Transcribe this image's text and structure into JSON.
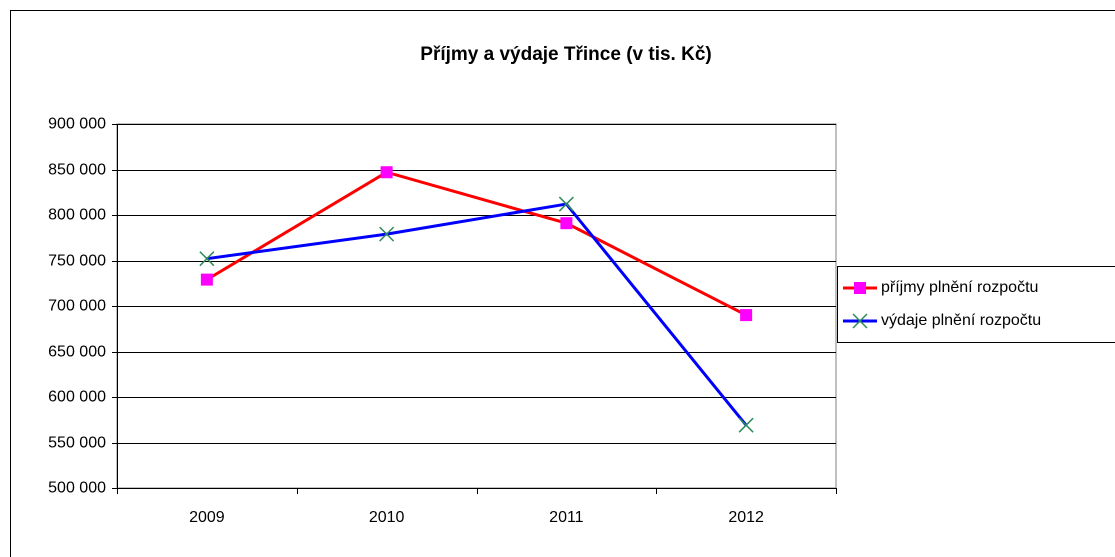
{
  "chart_data": {
    "type": "line",
    "title": "Příjmy a výdaje Třince (v tis. Kč)",
    "categories": [
      "2009",
      "2010",
      "2011",
      "2012"
    ],
    "series": [
      {
        "name": "příjmy plnění rozpočtu",
        "color": "#ff0000",
        "marker_color": "#ff00ff",
        "marker": "square",
        "values": [
          729000,
          847000,
          791000,
          690000
        ]
      },
      {
        "name": "výdaje plnění rozpočtu",
        "color": "#0000ff",
        "marker_color": "#2e8b57",
        "marker": "x",
        "values": [
          752000,
          779000,
          812000,
          569000
        ]
      }
    ],
    "ylim": [
      500000,
      900000
    ],
    "yticks": [
      {
        "value": 500000,
        "label": "500 000"
      },
      {
        "value": 550000,
        "label": "550 000"
      },
      {
        "value": 600000,
        "label": "600 000"
      },
      {
        "value": 650000,
        "label": "650 000"
      },
      {
        "value": 700000,
        "label": "700 000"
      },
      {
        "value": 750000,
        "label": "750 000"
      },
      {
        "value": 800000,
        "label": "800 000"
      },
      {
        "value": 850000,
        "label": "850 000"
      },
      {
        "value": 900000,
        "label": "900 000"
      }
    ],
    "grid": true,
    "legend": "right"
  }
}
